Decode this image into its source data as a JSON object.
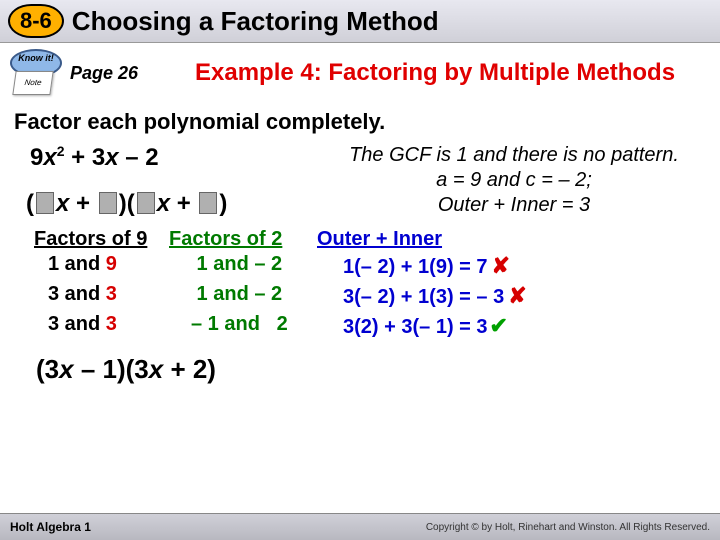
{
  "header": {
    "lesson_number": "8-6",
    "title": "Choosing a Factoring Method"
  },
  "subheader": {
    "knowit_label": "Know it!",
    "note_label": "Note",
    "page_label": "Page 26",
    "example_title": "Example 4: Factoring by Multiple Methods"
  },
  "instruction": "Factor each polynomial completely.",
  "polynomial": {
    "coef1": "9",
    "var1": "x",
    "exp1": "2",
    "op1": " + ",
    "coef2": "3",
    "var2": "x",
    "op2": " – ",
    "const": "2"
  },
  "explanation": {
    "line1": "The GCF is 1 and there is no pattern.",
    "line2": "a = 9 and c = – 2;",
    "line3": "Outer + Inner = 3"
  },
  "table": {
    "head1": "Factors of 9",
    "head2": "Factors of 2",
    "head3": "Outer + Inner",
    "rows": [
      {
        "f9_a": "1",
        "f9_b": "9",
        "f2": " 1 and – 2",
        "calc": "1(– 2) + 1(9) =  7",
        "mark": "x"
      },
      {
        "f9_a": "3",
        "f9_b": "3",
        "f2": " 1 and – 2",
        "calc": "3(– 2) + 1(3) = – 3",
        "mark": "x"
      },
      {
        "f9_a": "3",
        "f9_b": "3",
        "f2": "– 1 and   2",
        "calc": "3(2) + 3(– 1) =  3",
        "mark": "check"
      }
    ]
  },
  "answer": {
    "part1": "(3",
    "x1": "x",
    "mid": " – 1)(3",
    "x2": "x",
    "part2": " + 2)"
  },
  "footer": {
    "left": "Holt Algebra 1",
    "right": "Copyright © by Holt, Rinehart and Winston. All Rights Reserved."
  },
  "colors": {
    "badge_bg": "#ffb000",
    "example_red": "#e00000",
    "green": "#007a00",
    "blue": "#0000d0",
    "highlight_red": "#d60000",
    "check_green": "#00a000"
  }
}
